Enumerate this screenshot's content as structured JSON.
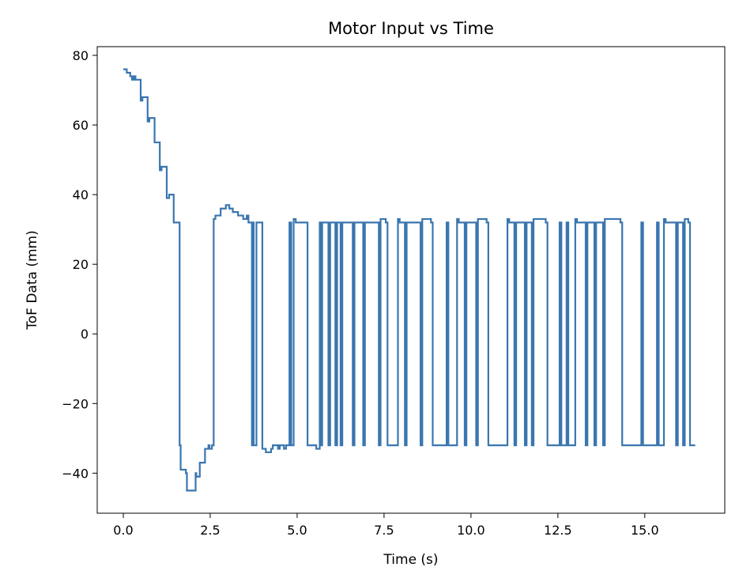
{
  "chart_data": {
    "type": "line",
    "title": "Motor Input vs Time",
    "xlabel": "Time (s)",
    "ylabel": "ToF Data (mm)",
    "xlim": [
      -0.75,
      17.3
    ],
    "ylim": [
      -51.5,
      82.5
    ],
    "xticks": [
      0.0,
      2.5,
      5.0,
      7.5,
      10.0,
      12.5,
      15.0
    ],
    "xtick_labels": [
      "0.0",
      "2.5",
      "5.0",
      "7.5",
      "10.0",
      "12.5",
      "15.0"
    ],
    "yticks": [
      -40,
      -20,
      0,
      20,
      40,
      60,
      80
    ],
    "ytick_labels": [
      "−40",
      "−20",
      "0",
      "20",
      "40",
      "60",
      "80"
    ],
    "grid": false,
    "step": "post",
    "color": "#3a76af",
    "series": [
      {
        "name": "",
        "x": [
          0.0,
          0.1,
          0.2,
          0.25,
          0.3,
          0.35,
          0.5,
          0.55,
          0.7,
          0.75,
          0.9,
          1.05,
          1.1,
          1.25,
          1.32,
          1.45,
          1.47,
          1.62,
          1.65,
          1.8,
          1.83,
          1.95,
          2.08,
          2.1,
          2.2,
          2.3,
          2.35,
          2.45,
          2.48,
          2.55,
          2.6,
          2.65,
          2.8,
          2.95,
          3.05,
          3.15,
          3.3,
          3.45,
          3.55,
          3.6,
          3.7,
          3.72,
          3.75,
          3.83,
          3.88,
          4.0,
          4.1,
          4.25,
          4.3,
          4.45,
          4.5,
          4.62,
          4.68,
          4.78,
          4.83,
          4.9,
          4.96,
          5.3,
          5.4,
          5.55,
          5.65,
          5.7,
          5.72,
          5.9,
          5.95,
          6.1,
          6.15,
          6.25,
          6.3,
          6.6,
          6.65,
          6.9,
          6.95,
          7.35,
          7.4,
          7.55,
          7.6,
          7.9,
          7.95,
          8.1,
          8.15,
          8.55,
          8.6,
          8.85,
          8.9,
          9.3,
          9.35,
          9.6,
          9.65,
          9.82,
          9.87,
          10.15,
          10.2,
          10.45,
          10.5,
          11.05,
          11.1,
          11.25,
          11.3,
          11.55,
          11.6,
          11.75,
          11.8,
          12.15,
          12.2,
          12.55,
          12.6,
          12.75,
          12.8,
          13.0,
          13.05,
          13.3,
          13.35,
          13.55,
          13.6,
          13.8,
          13.85,
          14.3,
          14.35,
          14.9,
          14.95,
          15.35,
          15.4,
          15.55,
          15.6,
          15.9,
          15.95,
          16.1,
          16.15,
          16.25,
          16.3,
          16.45
        ],
        "y": [
          76,
          75,
          74,
          73,
          74,
          73,
          67,
          68,
          61,
          62,
          55,
          47,
          48,
          39,
          40,
          32,
          32,
          -32,
          -39,
          -40,
          -45,
          -45,
          -40,
          -41,
          -37,
          -37,
          -33,
          -32,
          -33,
          -32,
          33,
          34,
          36,
          37,
          36,
          35,
          34,
          33,
          34,
          32,
          -32,
          32,
          -32,
          32,
          32,
          -33,
          -34,
          -33,
          -32,
          -33,
          -32,
          -33,
          -32,
          32,
          -32,
          33,
          32,
          -32,
          -32,
          -33,
          32,
          -32,
          32,
          -32,
          32,
          -32,
          32,
          -32,
          32,
          -32,
          32,
          -32,
          32,
          -32,
          33,
          32,
          -32,
          33,
          32,
          -32,
          32,
          -32,
          33,
          32,
          -32,
          32,
          -32,
          33,
          32,
          -32,
          32,
          -32,
          33,
          32,
          -32,
          33,
          32,
          -32,
          32,
          -32,
          32,
          -32,
          33,
          32,
          -32,
          32,
          -32,
          32,
          -32,
          33,
          32,
          -32,
          32,
          -32,
          32,
          -32,
          33,
          32,
          -32,
          32,
          -32,
          32,
          -32,
          33,
          32,
          -32,
          32,
          -32,
          33,
          32,
          -32,
          -32
        ]
      }
    ]
  }
}
